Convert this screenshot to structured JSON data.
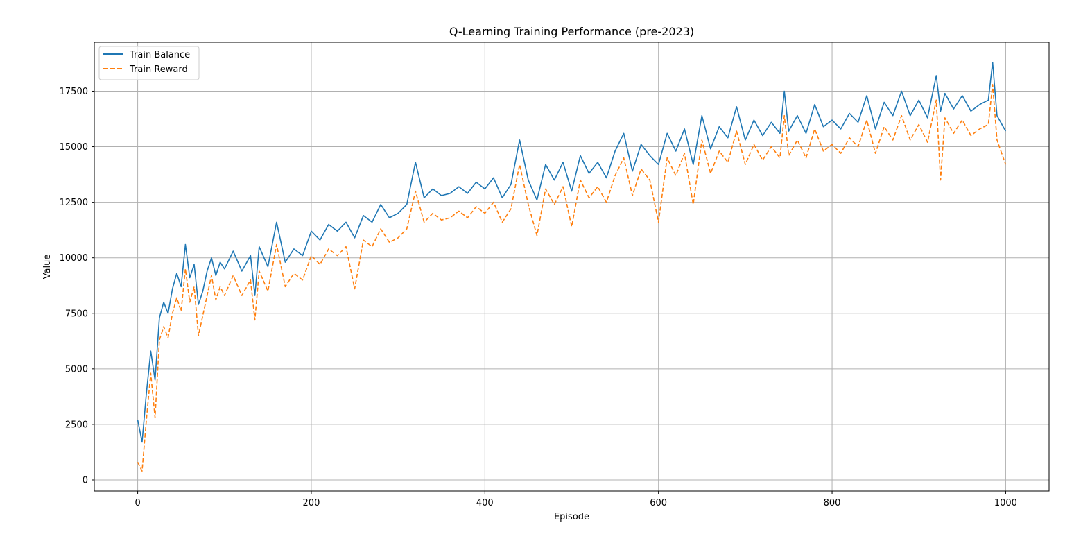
{
  "colors": {
    "balance": "#1f77b4",
    "reward": "#ff7f0e",
    "grid": "#b0b0b0",
    "background": "#ffffff"
  },
  "chart_data": {
    "type": "line",
    "title": "Q-Learning Training Performance (pre-2023)",
    "xlabel": "Episode",
    "ylabel": "Value",
    "xlim": [
      -50,
      1050
    ],
    "ylim": [
      -500,
      19700
    ],
    "xticks": [
      0,
      200,
      400,
      600,
      800,
      1000
    ],
    "yticks": [
      0,
      2500,
      5000,
      7500,
      10000,
      12500,
      15000,
      17500
    ],
    "grid": true,
    "legend_position": "upper-left",
    "series": [
      {
        "name": "Train Balance",
        "style": "solid",
        "color": "#1f77b4",
        "x": [
          0,
          5,
          10,
          15,
          20,
          25,
          30,
          35,
          40,
          45,
          50,
          55,
          60,
          65,
          70,
          75,
          80,
          85,
          90,
          95,
          100,
          110,
          120,
          130,
          135,
          140,
          150,
          160,
          170,
          180,
          190,
          200,
          210,
          220,
          230,
          240,
          250,
          260,
          270,
          280,
          290,
          300,
          310,
          320,
          330,
          340,
          350,
          360,
          370,
          380,
          390,
          400,
          410,
          420,
          430,
          440,
          450,
          460,
          470,
          480,
          490,
          500,
          510,
          520,
          530,
          540,
          550,
          560,
          570,
          580,
          590,
          600,
          610,
          620,
          630,
          640,
          650,
          660,
          670,
          680,
          690,
          700,
          710,
          720,
          730,
          740,
          745,
          750,
          760,
          770,
          780,
          790,
          800,
          810,
          820,
          830,
          840,
          850,
          860,
          870,
          880,
          890,
          900,
          910,
          920,
          925,
          930,
          940,
          950,
          960,
          970,
          980,
          985,
          990,
          1000
        ],
        "y": [
          2700,
          1700,
          3900,
          5800,
          4500,
          7300,
          8000,
          7500,
          8600,
          9300,
          8700,
          10600,
          9100,
          9700,
          7900,
          8500,
          9400,
          10000,
          9200,
          9800,
          9500,
          10300,
          9400,
          10100,
          8300,
          10500,
          9600,
          11600,
          9800,
          10400,
          10100,
          11200,
          10800,
          11500,
          11200,
          11600,
          10900,
          11900,
          11600,
          12400,
          11800,
          12000,
          12400,
          14300,
          12700,
          13100,
          12800,
          12900,
          13200,
          12900,
          13400,
          13100,
          13600,
          12700,
          13300,
          15300,
          13500,
          12600,
          14200,
          13500,
          14300,
          13000,
          14600,
          13800,
          14300,
          13600,
          14800,
          15600,
          13900,
          15100,
          14600,
          14200,
          15600,
          14800,
          15800,
          14200,
          16400,
          14900,
          15900,
          15400,
          16800,
          15300,
          16200,
          15500,
          16100,
          15600,
          17500,
          15700,
          16400,
          15600,
          16900,
          15900,
          16200,
          15800,
          16500,
          16100,
          17300,
          15800,
          17000,
          16400,
          17500,
          16400,
          17100,
          16300,
          18200,
          16600,
          17400,
          16700,
          17300,
          16600,
          16900,
          17100,
          18800,
          16400,
          15700
        ]
      },
      {
        "name": "Train Reward",
        "style": "dashed",
        "color": "#ff7f0e",
        "x": [
          0,
          5,
          10,
          15,
          20,
          25,
          30,
          35,
          40,
          45,
          50,
          55,
          60,
          65,
          70,
          75,
          80,
          85,
          90,
          95,
          100,
          110,
          120,
          130,
          135,
          140,
          150,
          160,
          170,
          180,
          190,
          200,
          210,
          220,
          230,
          240,
          250,
          260,
          270,
          280,
          290,
          300,
          310,
          320,
          330,
          340,
          350,
          360,
          370,
          380,
          390,
          400,
          410,
          420,
          430,
          440,
          450,
          460,
          470,
          480,
          490,
          500,
          510,
          520,
          530,
          540,
          550,
          560,
          570,
          580,
          590,
          600,
          610,
          620,
          630,
          640,
          650,
          660,
          670,
          680,
          690,
          700,
          710,
          720,
          730,
          740,
          745,
          750,
          760,
          770,
          780,
          790,
          800,
          810,
          820,
          830,
          840,
          850,
          860,
          870,
          880,
          890,
          900,
          910,
          920,
          925,
          930,
          940,
          950,
          960,
          970,
          980,
          985,
          990,
          1000
        ],
        "y": [
          800,
          400,
          2700,
          4800,
          2800,
          6300,
          6900,
          6400,
          7500,
          8200,
          7600,
          9500,
          8000,
          8700,
          6500,
          7400,
          8300,
          9200,
          8100,
          8700,
          8300,
          9200,
          8300,
          9000,
          7200,
          9400,
          8500,
          10600,
          8700,
          9300,
          9000,
          10100,
          9700,
          10400,
          10100,
          10500,
          8600,
          10800,
          10500,
          11300,
          10700,
          10900,
          11300,
          13000,
          11600,
          12000,
          11700,
          11800,
          12100,
          11800,
          12300,
          12000,
          12500,
          11600,
          12200,
          14200,
          12400,
          11000,
          13100,
          12400,
          13200,
          11400,
          13500,
          12700,
          13200,
          12500,
          13700,
          14500,
          12800,
          14000,
          13500,
          11600,
          14500,
          13700,
          14700,
          12400,
          15300,
          13800,
          14800,
          14300,
          15700,
          14200,
          15100,
          14400,
          15000,
          14500,
          16400,
          14600,
          15300,
          14500,
          15800,
          14800,
          15100,
          14700,
          15400,
          15000,
          16200,
          14700,
          15900,
          15300,
          16400,
          15300,
          16000,
          15200,
          17100,
          13500,
          16300,
          15600,
          16200,
          15500,
          15800,
          16000,
          17800,
          15300,
          14200
        ]
      }
    ]
  }
}
